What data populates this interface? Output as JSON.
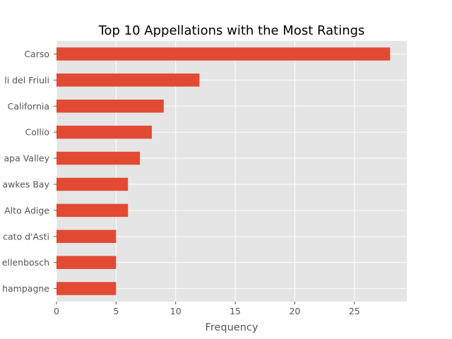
{
  "chart_data": {
    "type": "bar",
    "orientation": "horizontal",
    "title": "Top 10 Appellations with the Most Ratings",
    "xlabel": "Frequency",
    "ylabel": "",
    "categories": [
      "Carso",
      "Colli del Friuli",
      "California",
      "Collio",
      "Napa Valley",
      "Hawkes Bay",
      "Alto Adige",
      "Moscato d'Asti",
      "Stellenbosch",
      "Champagne"
    ],
    "category_labels_visible": [
      "Carso",
      "li del Friuli",
      "California",
      "Collio",
      "apa Valley",
      "awkes Bay",
      "Alto Adige",
      "cato d'Asti",
      "ellenbosch",
      "hampagne"
    ],
    "values": [
      28,
      12,
      9,
      8,
      7,
      6,
      6,
      5,
      5,
      5
    ],
    "xlim": [
      0,
      29.4
    ],
    "xticks": [
      0,
      5,
      10,
      15,
      20,
      25
    ],
    "grid": true,
    "style": "ggplot",
    "colors": {
      "bar": "#E24A33",
      "plot_background": "#E5E5E5",
      "grid": "#FFFFFF",
      "tick_text": "#555555",
      "title_text": "#000000"
    }
  }
}
